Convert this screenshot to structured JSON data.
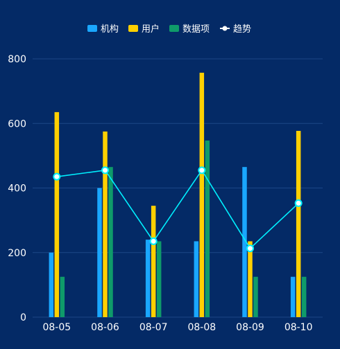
{
  "chart_data": {
    "type": "bar",
    "categories": [
      "08-05",
      "08-06",
      "08-07",
      "08-08",
      "08-09",
      "08-10"
    ],
    "series": [
      {
        "name": "机构",
        "type": "bar",
        "values": [
          200,
          400,
          240,
          235,
          465,
          125
        ]
      },
      {
        "name": "用户",
        "type": "bar",
        "values": [
          635,
          575,
          345,
          757,
          235,
          577
        ]
      },
      {
        "name": "数据项",
        "type": "bar",
        "values": [
          125,
          465,
          235,
          547,
          125,
          125
        ]
      },
      {
        "name": "趋势",
        "type": "line",
        "values": [
          435,
          455,
          235,
          455,
          213,
          353
        ]
      }
    ],
    "yTicks": [
      0,
      200,
      400,
      600,
      800
    ],
    "ylim": [
      0,
      800
    ],
    "grid": true,
    "legend_position": "top-center"
  },
  "colors": {
    "background": "#042a66",
    "grid": "#1c4787",
    "axis_text": "#ffffff",
    "机构": "#1aa7ff",
    "用户": "#ffd000",
    "数据项": "#0f9b6a",
    "趋势": "#00f0ff"
  }
}
